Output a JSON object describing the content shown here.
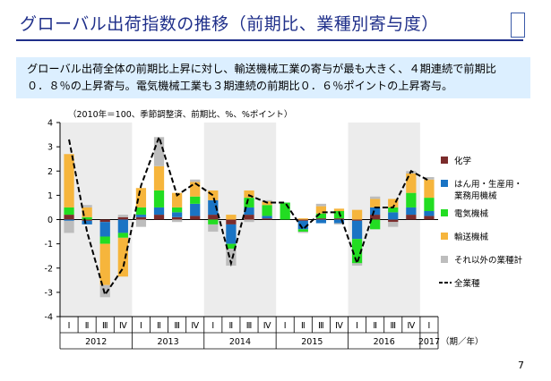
{
  "title": "グローバル出荷指数の推移（前期比、業種別寄与度）",
  "summary": {
    "line1": "グローバル出荷全体の前期比上昇に対し、輸送機械工業の寄与が最も大きく、４期連続で前期比",
    "line2": "０．８％の上昇寄与。電気機械工業も３期連続の前期比０．６％ポイントの上昇寄与。"
  },
  "page_number": "7",
  "chart_data": {
    "type": "bar",
    "stacked": true,
    "note": "（2010年＝100、季節調整済、前期比、%、%ポイント）",
    "ylim": [
      -4,
      4
    ],
    "yticks": [
      "-4",
      "-3",
      "-2",
      "-1",
      "0",
      "1",
      "2",
      "3",
      "4"
    ],
    "quarters": [
      "Ⅰ",
      "Ⅱ",
      "Ⅲ",
      "Ⅳ",
      "Ⅰ",
      "Ⅱ",
      "Ⅲ",
      "Ⅳ",
      "Ⅰ",
      "Ⅱ",
      "Ⅲ",
      "Ⅳ",
      "Ⅰ",
      "Ⅱ",
      "Ⅲ",
      "Ⅳ",
      "Ⅰ",
      "Ⅱ",
      "Ⅲ",
      "Ⅳ",
      "Ⅰ"
    ],
    "years": [
      "2012",
      "2013",
      "2014",
      "2015",
      "2016",
      "2017"
    ],
    "axis_suffix": "（期／年）",
    "shaded_years": [
      0,
      2,
      4
    ],
    "series": [
      {
        "name": "化学",
        "color": "#7b2c2c",
        "values": [
          0.2,
          -0.05,
          -0.1,
          0.1,
          0.1,
          0.2,
          0.1,
          0.15,
          0.2,
          -0.2,
          0.2,
          0.05,
          0.0,
          -0.05,
          0.05,
          0.05,
          -0.05,
          0.2,
          -0.1,
          0.2,
          0.15
        ]
      },
      {
        "name": "はん用・生産用・業務用機械",
        "color": "#1a74c4",
        "values": [
          -0.05,
          -0.15,
          -0.6,
          -0.55,
          0.1,
          0.3,
          0.2,
          0.5,
          0.6,
          -0.8,
          0.3,
          0.1,
          0.0,
          -0.35,
          -0.15,
          -0.15,
          -0.75,
          0.3,
          0.3,
          0.3,
          0.2
        ]
      },
      {
        "name": "電気機械",
        "color": "#22dd22",
        "values": [
          0.3,
          0.1,
          -0.3,
          -0.2,
          0.3,
          0.7,
          0.2,
          0.3,
          -0.2,
          -0.2,
          0.4,
          0.45,
          0.7,
          -0.1,
          0.2,
          0.3,
          -1.0,
          -0.4,
          0.2,
          0.6,
          0.55
        ]
      },
      {
        "name": "輸送機械",
        "color": "#f6b53c",
        "values": [
          2.2,
          0.4,
          -1.7,
          -1.6,
          0.8,
          1.0,
          0.6,
          0.6,
          0.4,
          0.2,
          0.3,
          0.15,
          0.0,
          0.05,
          0.3,
          0.1,
          0.4,
          0.35,
          0.35,
          0.8,
          0.75
        ]
      },
      {
        "name": "それ以外の業種計",
        "color": "#bdbdbd",
        "values": [
          -0.5,
          0.1,
          -0.5,
          0.1,
          -0.3,
          1.2,
          -0.1,
          0.1,
          -0.3,
          -0.7,
          -0.1,
          0.05,
          0.0,
          -0.05,
          0.1,
          -0.05,
          -0.1,
          0.1,
          -0.2,
          0.1,
          0.1
        ]
      }
    ],
    "line": {
      "name": "全業種",
      "values": [
        3.3,
        -0.5,
        -3.1,
        -2.0,
        1.4,
        3.4,
        1.0,
        1.5,
        1.0,
        -1.8,
        1.0,
        0.7,
        0.7,
        -0.4,
        0.3,
        0.3,
        -1.8,
        0.5,
        0.5,
        2.0,
        1.6
      ]
    },
    "legend": [
      {
        "label": "化学",
        "kind": "box",
        "color": "#7b2c2c"
      },
      {
        "label": "はん用・生産用・",
        "label2": "業務用機械",
        "kind": "box",
        "color": "#1a74c4"
      },
      {
        "label": "電気機械",
        "kind": "box",
        "color": "#22dd22"
      },
      {
        "label": "輸送機械",
        "kind": "box",
        "color": "#f6b53c"
      },
      {
        "label": "それ以外の業種計",
        "kind": "box",
        "color": "#bdbdbd"
      },
      {
        "label": "全業種",
        "kind": "line",
        "color": "#000000"
      }
    ]
  }
}
